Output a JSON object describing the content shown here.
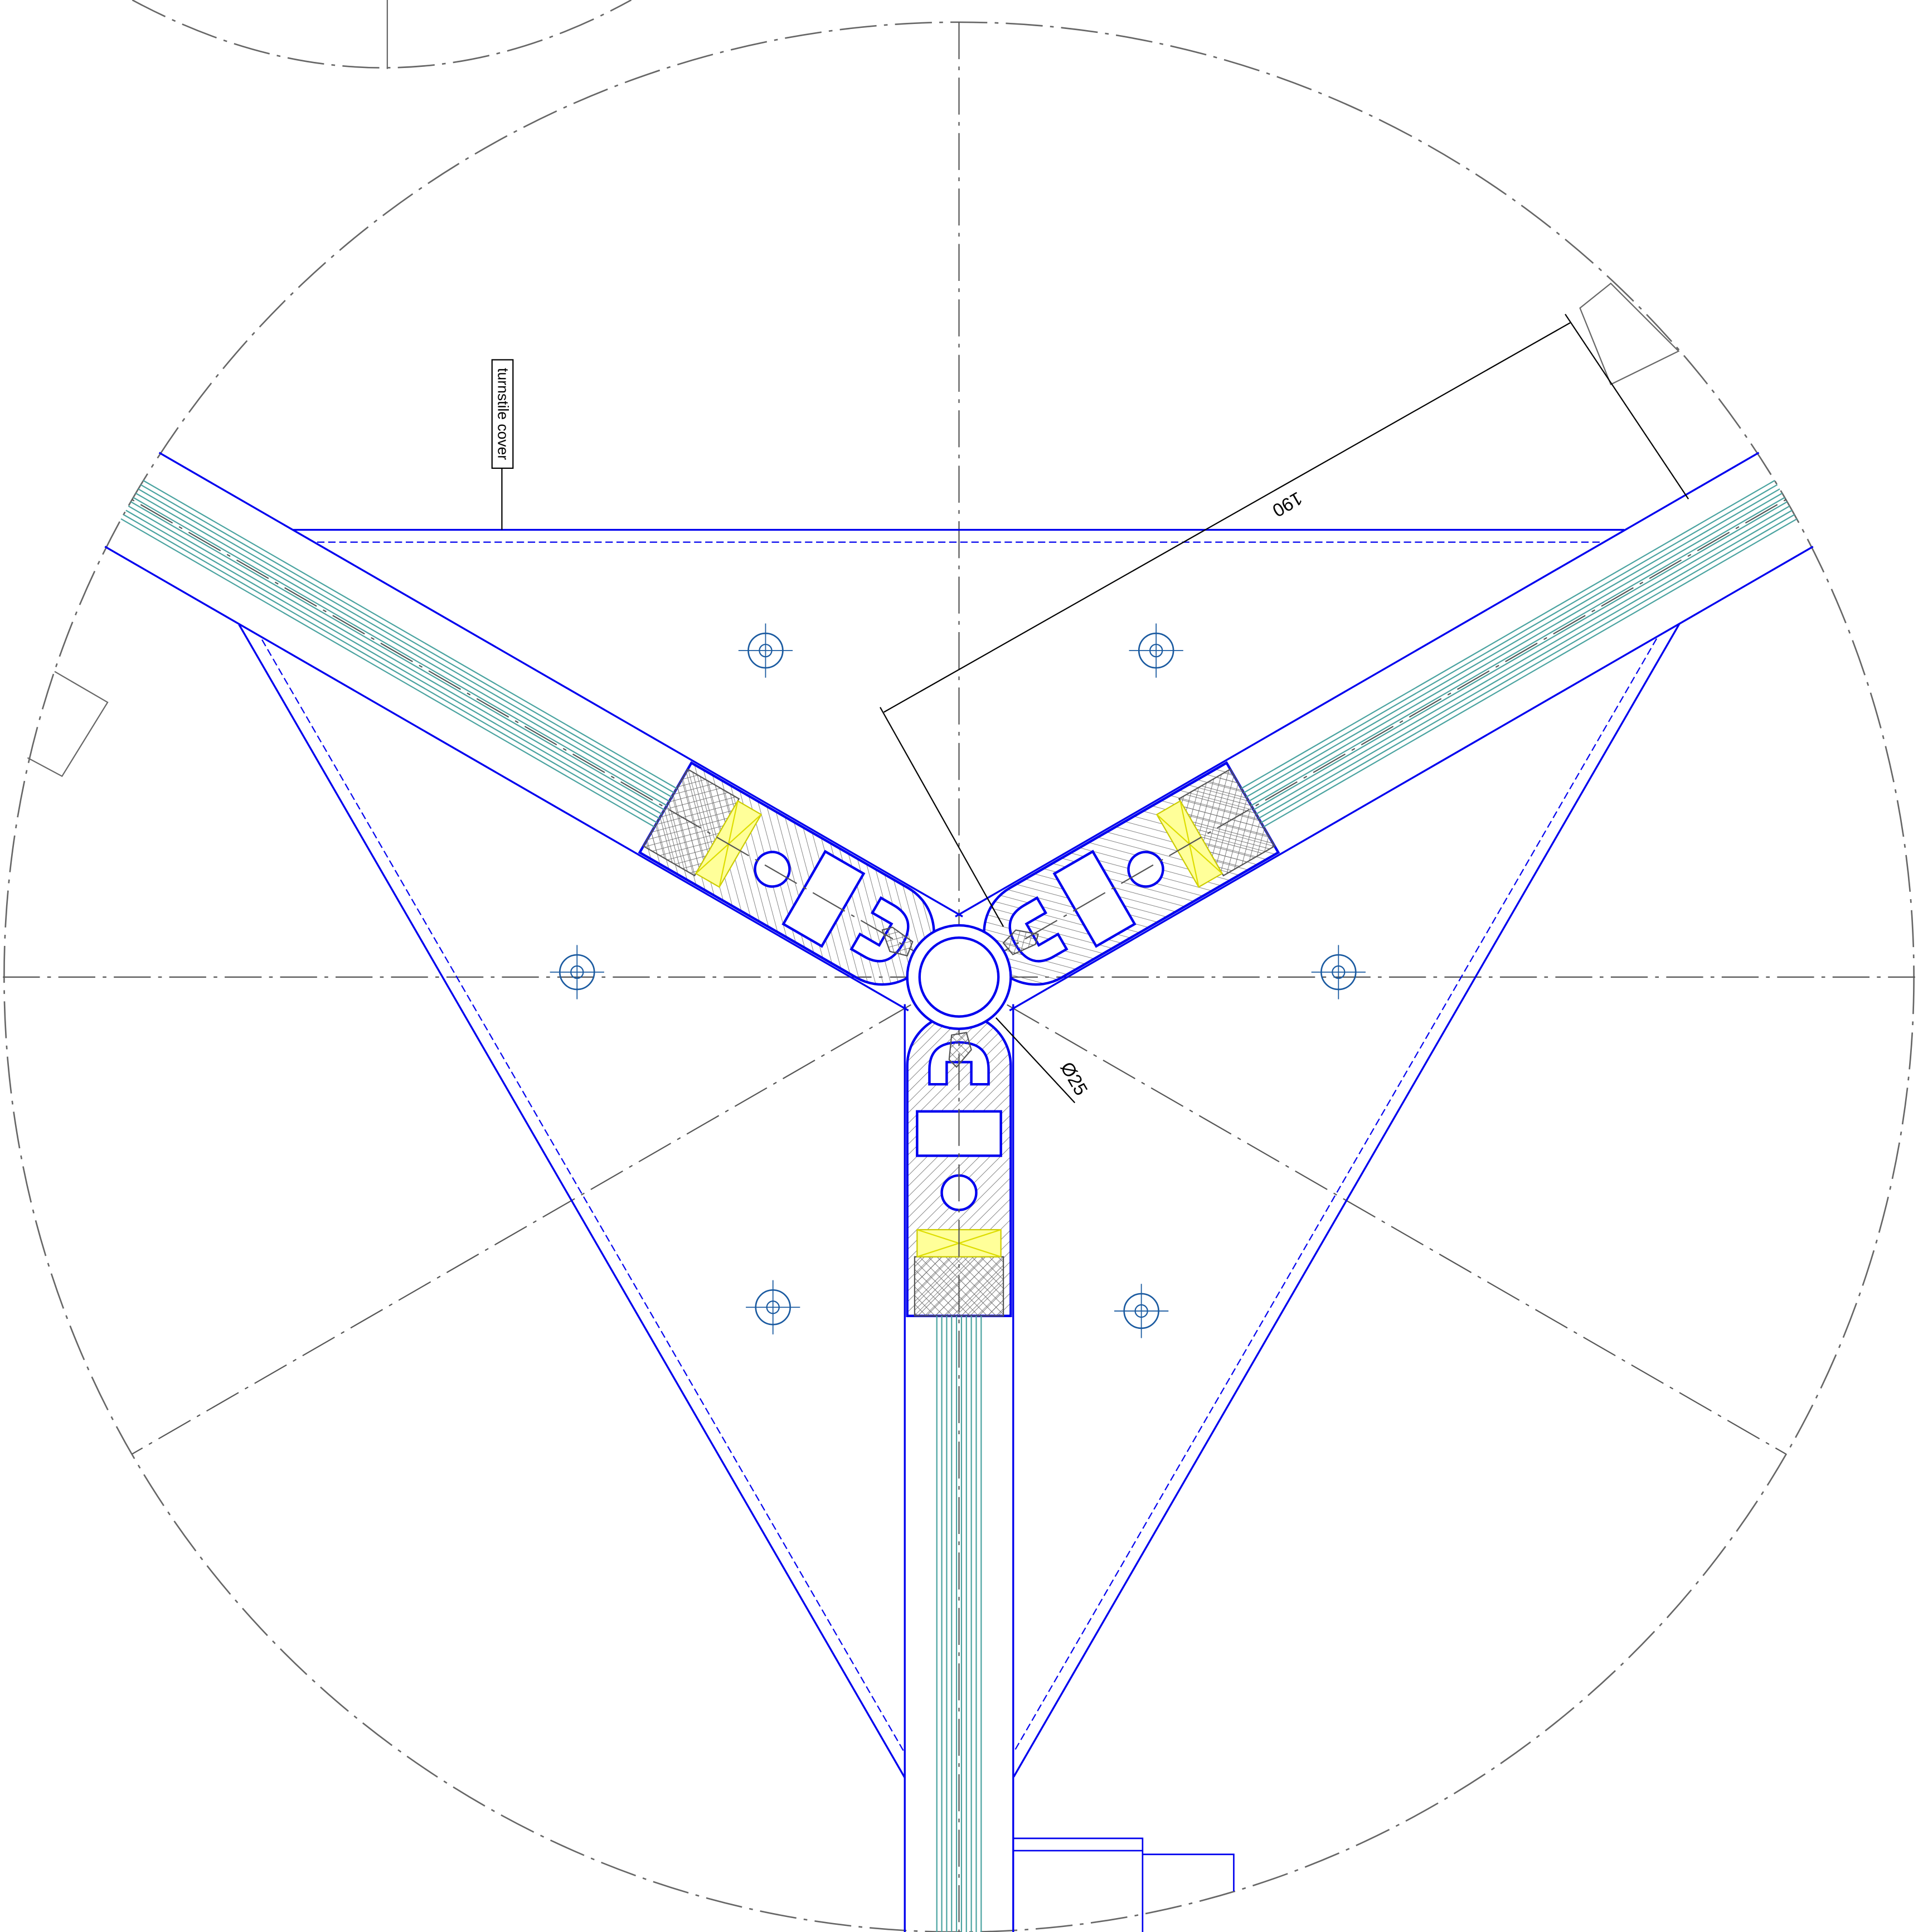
{
  "labels": {
    "cover": "turnstile cover",
    "dimension_radius": "190",
    "dimension_diameter": "Ø25"
  }
}
